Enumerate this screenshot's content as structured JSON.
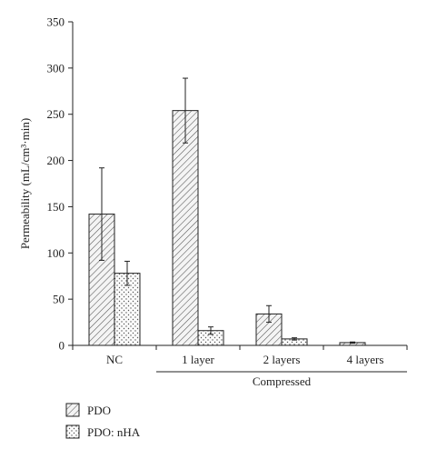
{
  "chart_data": {
    "type": "bar",
    "ylabel": "Permeability (mL/cm³·min)",
    "xlabel": "",
    "ylim": [
      0,
      350
    ],
    "yticks": [
      0,
      50,
      100,
      150,
      200,
      250,
      300,
      350
    ],
    "categories": [
      "NC",
      "1 layer",
      "2 layers",
      "4 layers"
    ],
    "group_label": {
      "text": "Compressed",
      "spans": [
        "1 layer",
        "2 layers",
        "4 layers"
      ]
    },
    "series": [
      {
        "name": "PDO",
        "pattern": "diagonal-hatch",
        "values": [
          142,
          254,
          34,
          3
        ],
        "errors": [
          50,
          35,
          9,
          0.7
        ]
      },
      {
        "name": "PDO: nHA",
        "pattern": "dots",
        "values": [
          78,
          16,
          7,
          0
        ],
        "errors": [
          13,
          4,
          1.2,
          0
        ]
      }
    ],
    "grid": false,
    "legend_position": "bottom-left",
    "colors": {
      "bar_fill": "#f4f4f4",
      "pattern": "#555555",
      "stroke": "#222222"
    }
  }
}
